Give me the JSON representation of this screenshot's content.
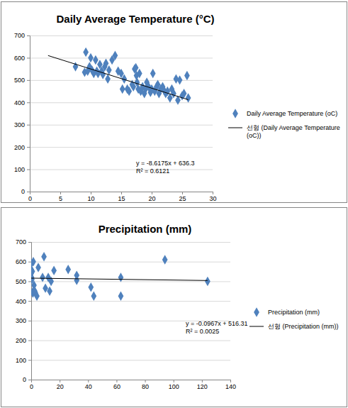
{
  "chart_data": [
    {
      "type": "scatter",
      "title": "Daily Average Temperature (°C)",
      "xlim": [
        0,
        30
      ],
      "xticks": [
        0,
        5,
        10,
        15,
        20,
        25,
        30
      ],
      "ylim": [
        0,
        700
      ],
      "yticks": [
        0,
        100,
        200,
        300,
        400,
        500,
        600,
        700
      ],
      "grid": true,
      "legend": "right",
      "annotations": [
        "y = -8.6175x + 636.3",
        "R² = 0.6121"
      ],
      "series": [
        {
          "name": "Daily Average Temperature (oC)",
          "type": "scatter",
          "marker": "diamond",
          "color": "#4f81bd",
          "x": [
            7.5,
            9,
            9.2,
            9.5,
            9.8,
            10,
            10.2,
            10.5,
            10.8,
            11,
            11.2,
            11.5,
            11.8,
            12,
            12.3,
            12.5,
            12.8,
            13,
            13.5,
            14,
            14.5,
            15,
            15.2,
            15.5,
            16,
            16.3,
            16.8,
            17,
            17.2,
            17.4,
            17.5,
            17.6,
            17.8,
            18,
            18.2,
            18.5,
            18.8,
            19,
            19.2,
            19.5,
            19.8,
            20,
            20.2,
            20.5,
            20.8,
            21,
            21.2,
            21.5,
            21.8,
            22,
            22.3,
            22.6,
            23,
            23.3,
            23.6,
            24,
            24.3,
            24.6,
            25,
            25.3,
            25.8,
            26
          ],
          "values": [
            560,
            535,
            625,
            540,
            560,
            600,
            545,
            530,
            590,
            540,
            530,
            570,
            540,
            525,
            560,
            575,
            505,
            545,
            590,
            610,
            540,
            530,
            460,
            505,
            460,
            450,
            480,
            470,
            550,
            555,
            520,
            490,
            460,
            530,
            450,
            470,
            440,
            460,
            490,
            470,
            445,
            460,
            530,
            450,
            470,
            480,
            440,
            460,
            470,
            455,
            440,
            450,
            420,
            460,
            440,
            505,
            410,
            500,
            430,
            440,
            520,
            420
          ]
        },
        {
          "name": "선형 (Daily Average Temperature (oC))",
          "type": "line",
          "line_style": "solid",
          "color": "#000000",
          "x": [
            3,
            26
          ],
          "values": [
            610,
            412
          ]
        }
      ]
    },
    {
      "type": "scatter",
      "title": "Precipitation (mm)",
      "xlim": [
        0,
        140
      ],
      "xticks": [
        0,
        20,
        40,
        60,
        80,
        100,
        120,
        140
      ],
      "ylim": [
        0,
        700
      ],
      "yticks": [
        0,
        100,
        200,
        300,
        400,
        500,
        600,
        700
      ],
      "grid": true,
      "legend": "right",
      "annotations": [
        "y = -0.0967x + 516.31",
        "R² = 0.0025"
      ],
      "series": [
        {
          "name": "Precipitation (mm)",
          "type": "scatter",
          "marker": "diamond",
          "color": "#4f81bd",
          "x": [
            0,
            0,
            0,
            0.3,
            0.5,
            0.8,
            1,
            1.2,
            1.5,
            2,
            2.5,
            3,
            4,
            5,
            8,
            9,
            10,
            12,
            13,
            14,
            16,
            26,
            32,
            32,
            42,
            44,
            63,
            63,
            94,
            124
          ],
          "values": [
            590,
            560,
            540,
            520,
            510,
            550,
            445,
            440,
            600,
            480,
            450,
            440,
            425,
            570,
            520,
            625,
            465,
            520,
            450,
            500,
            555,
            560,
            530,
            505,
            470,
            425,
            520,
            425,
            610,
            500
          ]
        },
        {
          "name": "선형 (Precipitation (mm))",
          "type": "line",
          "line_style": "solid",
          "color": "#000000",
          "x": [
            0,
            124
          ],
          "values": [
            516,
            504
          ]
        }
      ]
    }
  ]
}
